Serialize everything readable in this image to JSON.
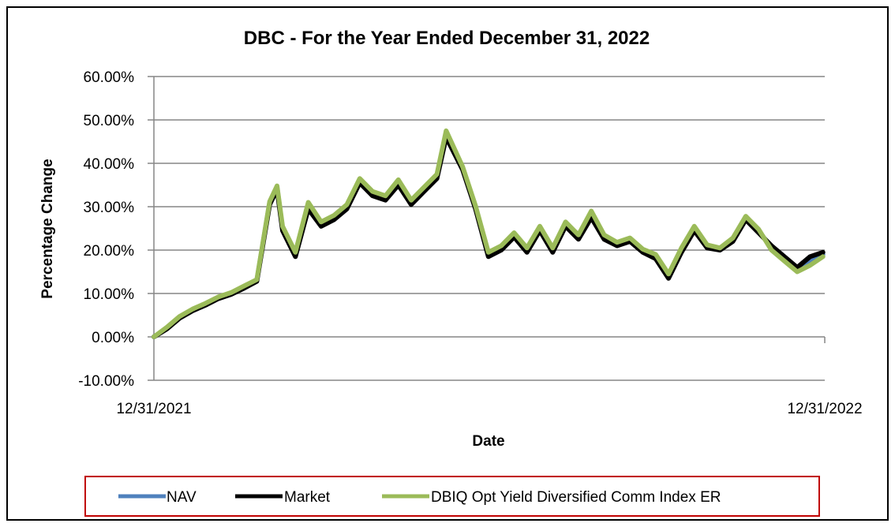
{
  "chart_data": {
    "type": "line",
    "title": "DBC - For the Year Ended December 31, 2022",
    "xlabel": "Date",
    "ylabel": "Percentage Change",
    "x_tick_labels": [
      "12/31/2021",
      "12/31/2022"
    ],
    "x_range": [
      "12/31/2021",
      "12/31/2022"
    ],
    "ylim": [
      -0.1,
      0.6
    ],
    "y_ticks": [
      -0.1,
      0.0,
      0.1,
      0.2,
      0.3,
      0.4,
      0.5,
      0.6
    ],
    "y_tick_labels": [
      "-10.00%",
      "0.00%",
      "10.00%",
      "20.00%",
      "30.00%",
      "40.00%",
      "50.00%",
      "60.00%"
    ],
    "grid": true,
    "legend_position": "bottom",
    "series": [
      {
        "name": "NAV",
        "color": "#4F81BD",
        "x": [
          "2021-12-31",
          "2022-01-07",
          "2022-01-14",
          "2022-01-21",
          "2022-01-28",
          "2022-02-04",
          "2022-02-11",
          "2022-02-18",
          "2022-02-25",
          "2022-03-04",
          "2022-03-08",
          "2022-03-11",
          "2022-03-18",
          "2022-03-25",
          "2022-04-01",
          "2022-04-08",
          "2022-04-15",
          "2022-04-22",
          "2022-04-29",
          "2022-05-06",
          "2022-05-13",
          "2022-05-20",
          "2022-05-27",
          "2022-06-03",
          "2022-06-08",
          "2022-06-17",
          "2022-06-24",
          "2022-07-01",
          "2022-07-08",
          "2022-07-15",
          "2022-07-22",
          "2022-07-29",
          "2022-08-05",
          "2022-08-12",
          "2022-08-19",
          "2022-08-26",
          "2022-09-02",
          "2022-09-09",
          "2022-09-16",
          "2022-09-23",
          "2022-09-30",
          "2022-10-07",
          "2022-10-14",
          "2022-10-21",
          "2022-10-28",
          "2022-11-04",
          "2022-11-11",
          "2022-11-18",
          "2022-11-25",
          "2022-12-02",
          "2022-12-09",
          "2022-12-16",
          "2022-12-23",
          "2022-12-30"
        ],
        "values": [
          0.0,
          0.02,
          0.045,
          0.062,
          0.075,
          0.09,
          0.1,
          0.115,
          0.13,
          0.31,
          0.345,
          0.25,
          0.19,
          0.3,
          0.26,
          0.275,
          0.3,
          0.36,
          0.33,
          0.32,
          0.355,
          0.31,
          0.34,
          0.37,
          0.465,
          0.39,
          0.3,
          0.19,
          0.205,
          0.235,
          0.2,
          0.25,
          0.2,
          0.26,
          0.23,
          0.28,
          0.23,
          0.215,
          0.225,
          0.2,
          0.185,
          0.14,
          0.2,
          0.25,
          0.21,
          0.2,
          0.225,
          0.275,
          0.245,
          0.205,
          0.18,
          0.155,
          0.175,
          0.19
        ]
      },
      {
        "name": "Market",
        "color": "#000000",
        "x": [
          "2021-12-31",
          "2022-01-07",
          "2022-01-14",
          "2022-01-21",
          "2022-01-28",
          "2022-02-04",
          "2022-02-11",
          "2022-02-18",
          "2022-02-25",
          "2022-03-04",
          "2022-03-08",
          "2022-03-11",
          "2022-03-18",
          "2022-03-25",
          "2022-04-01",
          "2022-04-08",
          "2022-04-15",
          "2022-04-22",
          "2022-04-29",
          "2022-05-06",
          "2022-05-13",
          "2022-05-20",
          "2022-05-27",
          "2022-06-03",
          "2022-06-08",
          "2022-06-17",
          "2022-06-24",
          "2022-07-01",
          "2022-07-08",
          "2022-07-15",
          "2022-07-22",
          "2022-07-29",
          "2022-08-05",
          "2022-08-12",
          "2022-08-19",
          "2022-08-26",
          "2022-09-02",
          "2022-09-09",
          "2022-09-16",
          "2022-09-23",
          "2022-09-30",
          "2022-10-07",
          "2022-10-14",
          "2022-10-21",
          "2022-10-28",
          "2022-11-04",
          "2022-11-11",
          "2022-11-18",
          "2022-11-25",
          "2022-12-02",
          "2022-12-09",
          "2022-12-16",
          "2022-12-23",
          "2022-12-30"
        ],
        "values": [
          0.0,
          0.018,
          0.043,
          0.06,
          0.073,
          0.088,
          0.098,
          0.112,
          0.128,
          0.305,
          0.34,
          0.245,
          0.185,
          0.295,
          0.255,
          0.27,
          0.295,
          0.355,
          0.325,
          0.315,
          0.35,
          0.305,
          0.335,
          0.365,
          0.46,
          0.385,
          0.295,
          0.185,
          0.2,
          0.23,
          0.195,
          0.245,
          0.195,
          0.255,
          0.225,
          0.275,
          0.225,
          0.21,
          0.22,
          0.195,
          0.18,
          0.135,
          0.195,
          0.245,
          0.205,
          0.2,
          0.22,
          0.27,
          0.24,
          0.21,
          0.185,
          0.16,
          0.185,
          0.195
        ]
      },
      {
        "name": "DBIQ Opt Yield Diversified Comm Index ER",
        "color": "#9BBB59",
        "x": [
          "2021-12-31",
          "2022-01-07",
          "2022-01-14",
          "2022-01-21",
          "2022-01-28",
          "2022-02-04",
          "2022-02-11",
          "2022-02-18",
          "2022-02-25",
          "2022-03-04",
          "2022-03-08",
          "2022-03-11",
          "2022-03-18",
          "2022-03-25",
          "2022-04-01",
          "2022-04-08",
          "2022-04-15",
          "2022-04-22",
          "2022-04-29",
          "2022-05-06",
          "2022-05-13",
          "2022-05-20",
          "2022-05-27",
          "2022-06-03",
          "2022-06-08",
          "2022-06-17",
          "2022-06-24",
          "2022-07-01",
          "2022-07-08",
          "2022-07-15",
          "2022-07-22",
          "2022-07-29",
          "2022-08-05",
          "2022-08-12",
          "2022-08-19",
          "2022-08-26",
          "2022-09-02",
          "2022-09-09",
          "2022-09-16",
          "2022-09-23",
          "2022-09-30",
          "2022-10-07",
          "2022-10-14",
          "2022-10-21",
          "2022-10-28",
          "2022-11-04",
          "2022-11-11",
          "2022-11-18",
          "2022-11-25",
          "2022-12-02",
          "2022-12-09",
          "2022-12-16",
          "2022-12-23",
          "2022-12-30"
        ],
        "values": [
          0.0,
          0.022,
          0.047,
          0.064,
          0.077,
          0.092,
          0.102,
          0.117,
          0.132,
          0.312,
          0.348,
          0.255,
          0.195,
          0.31,
          0.265,
          0.28,
          0.305,
          0.365,
          0.335,
          0.325,
          0.362,
          0.315,
          0.345,
          0.375,
          0.475,
          0.392,
          0.302,
          0.195,
          0.21,
          0.24,
          0.205,
          0.255,
          0.205,
          0.265,
          0.235,
          0.29,
          0.235,
          0.218,
          0.228,
          0.202,
          0.19,
          0.145,
          0.205,
          0.255,
          0.212,
          0.205,
          0.228,
          0.278,
          0.248,
          0.2,
          0.175,
          0.15,
          0.165,
          0.185
        ]
      }
    ]
  }
}
